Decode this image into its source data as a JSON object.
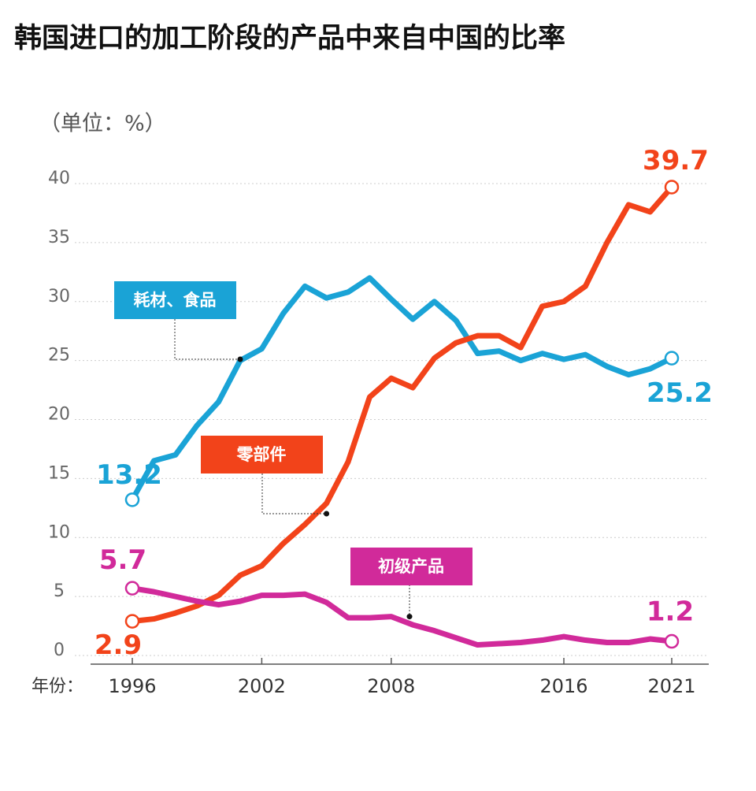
{
  "chart_data": {
    "type": "line",
    "title": "韩国进口的加工阶段的产品中来自中国的比率",
    "y_label": "（单位：%）",
    "x_label": "年份：",
    "x": [
      1996,
      1997,
      1998,
      1999,
      2000,
      2001,
      2002,
      2003,
      2004,
      2005,
      2006,
      2007,
      2008,
      2009,
      2010,
      2011,
      2012,
      2013,
      2014,
      2015,
      2016,
      2017,
      2018,
      2019,
      2020,
      2021
    ],
    "xlim": [
      1996,
      2021
    ],
    "xticks": [
      1996,
      2002,
      2008,
      2016,
      2021
    ],
    "ylim": [
      0,
      40
    ],
    "yticks": [
      0,
      5,
      10,
      15,
      20,
      25,
      30,
      35,
      40
    ],
    "grid": true,
    "series": [
      {
        "name": "耗材、食品",
        "color": "#1aa3d6",
        "values": [
          13.2,
          16.5,
          17,
          19.5,
          21.5,
          25,
          26,
          29,
          31.3,
          30.3,
          30.8,
          32,
          30.2,
          28.5,
          30,
          28.4,
          25.6,
          25.8,
          25,
          25.6,
          25.1,
          25.5,
          24.5,
          23.8,
          24.3,
          25.2
        ]
      },
      {
        "name": "零部件",
        "color": "#f2431a",
        "values": [
          2.9,
          3.1,
          3.6,
          4.2,
          5.1,
          6.8,
          7.6,
          9.5,
          11.1,
          12.9,
          16.4,
          21.9,
          23.5,
          22.7,
          25.2,
          26.5,
          27.1,
          27.1,
          26.1,
          29.6,
          30,
          31.3,
          35,
          38.2,
          37.6,
          39.7
        ]
      },
      {
        "name": "初级产品",
        "color": "#d12a9a",
        "values": [
          5.7,
          5.4,
          5,
          4.6,
          4.3,
          4.6,
          5.1,
          5.1,
          5.2,
          4.5,
          3.2,
          3.2,
          3.3,
          2.6,
          2.1,
          1.5,
          0.9,
          1,
          1.1,
          1.3,
          1.6,
          1.3,
          1.1,
          1.1,
          1.4,
          1.2
        ]
      }
    ]
  }
}
